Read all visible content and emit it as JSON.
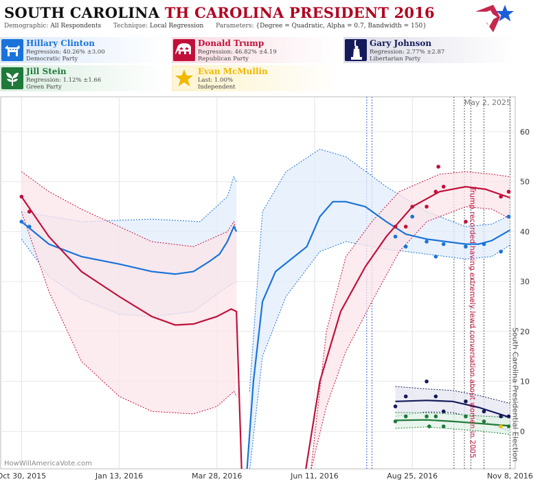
{
  "header": {
    "title_part1": "SOUTH CAROLINA",
    "title_part2": "TH CAROLINA PRESIDENT 2016",
    "demographic_label": "Demographic:",
    "demographic_value": "All Respondents",
    "technique_label": "Technique:",
    "technique_value": "Local Regression",
    "parameters_label": "Parameters:",
    "parameters_value": "{Degree = Quadratic, Alpha = 0.7, Bandwidth = 150}"
  },
  "candidates": [
    {
      "name": "Hillary Clinton",
      "line2": "Regression: 40.26% ±3.00",
      "line3": "Democratic Party",
      "color": "#1a73d9",
      "icon": "donkey-icon"
    },
    {
      "name": "Donald Trump",
      "line2": "Regression: 46.82% ±4.19",
      "line3": "Republican Party",
      "color": "#c0103a",
      "icon": "elephant-icon"
    },
    {
      "name": "Gary Johnson",
      "line2": "Regression: 2.77% ±2.87",
      "line3": "Libertarian Party",
      "color": "#141a5a",
      "icon": "statue-of-liberty-icon"
    },
    {
      "name": "Jill Stein",
      "line2": "Regression: 1.12% ±1.66",
      "line3": "Green Party",
      "color": "#1f7a3a",
      "icon": "leaf-icon"
    },
    {
      "name": "Evan McMullin",
      "line2": "Last: 1.00%",
      "line3": "Independent",
      "color": "#f2b800",
      "icon": "star-icon"
    }
  ],
  "chart_data": {
    "type": "line",
    "title": "SOUTH CAROLINA TH CAROLINA PRESIDENT 2016",
    "xlabel": "",
    "ylabel": "",
    "x_range": [
      "2015-10-14",
      "2016-11-12"
    ],
    "ylim": [
      -7.5,
      67
    ],
    "x_ticks": [
      "Oct 30, 2015",
      "Jan 13, 2016",
      "Mar 28, 2016",
      "Jun 11, 2016",
      "Aug 25, 2016",
      "Nov 8, 2016"
    ],
    "x_tick_dates": [
      "2015-10-30",
      "2016-01-13",
      "2016-03-28",
      "2016-06-11",
      "2016-08-25",
      "2016-11-08"
    ],
    "y_ticks": [
      0,
      10,
      20,
      30,
      40,
      50,
      60
    ],
    "grid": true,
    "date_stamp": "May 2, 2025",
    "watermark": "HowWillAmericaVote.com",
    "annotations": [
      {
        "text": "Trump recorded having extremely lewd conversation about women in 2005",
        "date": "2016-10-07"
      },
      {
        "text": "South Carolina Presidential Election",
        "date": "2016-11-08"
      }
    ],
    "event_lines_blue": [
      "2016-07-21",
      "2016-07-25"
    ],
    "event_lines_black": [
      "2016-09-26",
      "2016-10-04",
      "2016-10-09",
      "2016-10-19",
      "2016-11-08"
    ],
    "series": [
      {
        "name": "Hillary Clinton",
        "color": "#1a73d9",
        "trend": [
          [
            "2015-10-30",
            42
          ],
          [
            "2015-11-20",
            37.5
          ],
          [
            "2015-12-15",
            35
          ],
          [
            "2016-01-13",
            33.5
          ],
          [
            "2016-02-07",
            32
          ],
          [
            "2016-02-25",
            31.5
          ],
          [
            "2016-03-10",
            32
          ],
          [
            "2016-03-22",
            34
          ],
          [
            "2016-03-30",
            35.5
          ],
          [
            "2016-04-05",
            38
          ],
          [
            "2016-04-10",
            41
          ],
          [
            "2016-04-12",
            40
          ]
        ],
        "trend2": [
          [
            "2016-04-20",
            -8
          ],
          [
            "2016-04-25",
            10
          ],
          [
            "2016-05-02",
            26
          ],
          [
            "2016-05-12",
            32
          ],
          [
            "2016-06-05",
            37
          ],
          [
            "2016-06-15",
            43
          ],
          [
            "2016-06-25",
            46
          ],
          [
            "2016-07-05",
            46
          ],
          [
            "2016-07-20",
            45
          ],
          [
            "2016-08-05",
            42
          ],
          [
            "2016-08-20",
            39.5
          ],
          [
            "2016-09-05",
            38.5
          ],
          [
            "2016-09-20",
            38
          ],
          [
            "2016-10-05",
            37.5
          ],
          [
            "2016-10-15",
            37.5
          ],
          [
            "2016-10-25",
            38.2
          ],
          [
            "2016-11-08",
            40.3
          ]
        ],
        "upper": [
          [
            "2015-10-30",
            44
          ],
          [
            "2015-12-15",
            42
          ],
          [
            "2016-02-07",
            42.5
          ],
          [
            "2016-03-15",
            42
          ],
          [
            "2016-04-05",
            47
          ],
          [
            "2016-04-10",
            51
          ],
          [
            "2016-04-12",
            50
          ]
        ],
        "lower": [
          [
            "2015-10-30",
            38.5
          ],
          [
            "2015-11-20",
            31
          ],
          [
            "2015-12-15",
            26.5
          ],
          [
            "2016-01-13",
            23.5
          ],
          [
            "2016-02-07",
            23
          ],
          [
            "2016-03-10",
            24
          ],
          [
            "2016-04-05",
            29
          ],
          [
            "2016-04-12",
            30
          ]
        ],
        "upper2": [
          [
            "2016-04-22",
            8
          ],
          [
            "2016-05-02",
            44
          ],
          [
            "2016-05-20",
            52
          ],
          [
            "2016-06-15",
            56.5
          ],
          [
            "2016-07-05",
            55
          ],
          [
            "2016-08-05",
            49
          ],
          [
            "2016-09-05",
            44
          ],
          [
            "2016-10-05",
            41
          ],
          [
            "2016-10-25",
            41.5
          ],
          [
            "2016-11-08",
            43.3
          ]
        ],
        "lower2": [
          [
            "2016-04-22",
            -8
          ],
          [
            "2016-05-02",
            15
          ],
          [
            "2016-05-20",
            27
          ],
          [
            "2016-06-15",
            36
          ],
          [
            "2016-07-05",
            38
          ],
          [
            "2016-08-05",
            36.5
          ],
          [
            "2016-09-05",
            35.5
          ],
          [
            "2016-10-05",
            34.5
          ],
          [
            "2016-10-25",
            35
          ],
          [
            "2016-11-08",
            37.3
          ]
        ],
        "points": [
          [
            "2015-10-30",
            42
          ],
          [
            "2015-11-05",
            41
          ],
          [
            "2016-08-12",
            39
          ],
          [
            "2016-08-20",
            37
          ],
          [
            "2016-08-25",
            43
          ],
          [
            "2016-09-05",
            38
          ],
          [
            "2016-09-12",
            35
          ],
          [
            "2016-09-18",
            37.5
          ],
          [
            "2016-10-05",
            37
          ],
          [
            "2016-10-19",
            37.5
          ],
          [
            "2016-11-01",
            36
          ],
          [
            "2016-11-07",
            43
          ]
        ]
      },
      {
        "name": "Donald Trump",
        "color": "#c0103a",
        "trend": [
          [
            "2015-10-30",
            47
          ],
          [
            "2015-11-20",
            39
          ],
          [
            "2015-12-15",
            32
          ],
          [
            "2016-01-13",
            27
          ],
          [
            "2016-02-07",
            23
          ],
          [
            "2016-02-25",
            21.3
          ],
          [
            "2016-03-10",
            21.5
          ],
          [
            "2016-03-28",
            23
          ],
          [
            "2016-04-08",
            24.5
          ],
          [
            "2016-04-12",
            24
          ],
          [
            "2016-04-16",
            -8
          ]
        ],
        "trend2": [
          [
            "2016-06-04",
            -8
          ],
          [
            "2016-06-15",
            10
          ],
          [
            "2016-07-01",
            24
          ],
          [
            "2016-07-20",
            33
          ],
          [
            "2016-08-05",
            39
          ],
          [
            "2016-08-25",
            45
          ],
          [
            "2016-09-15",
            48
          ],
          [
            "2016-10-05",
            49
          ],
          [
            "2016-10-20",
            48.5
          ],
          [
            "2016-11-08",
            46.8
          ]
        ],
        "upper": [
          [
            "2015-10-30",
            52
          ],
          [
            "2015-11-20",
            48
          ],
          [
            "2015-12-15",
            44.5
          ],
          [
            "2016-01-13",
            41
          ],
          [
            "2016-02-07",
            38
          ],
          [
            "2016-03-10",
            37
          ],
          [
            "2016-04-05",
            40
          ],
          [
            "2016-04-10",
            42
          ],
          [
            "2016-04-12",
            40
          ]
        ],
        "lower": [
          [
            "2015-10-30",
            44
          ],
          [
            "2015-11-20",
            28
          ],
          [
            "2015-12-15",
            14
          ],
          [
            "2016-01-13",
            7
          ],
          [
            "2016-02-07",
            4
          ],
          [
            "2016-03-10",
            3.5
          ],
          [
            "2016-03-28",
            5
          ],
          [
            "2016-04-10",
            8
          ],
          [
            "2016-04-12",
            7
          ]
        ],
        "upper2": [
          [
            "2016-06-08",
            -8
          ],
          [
            "2016-06-20",
            20
          ],
          [
            "2016-07-05",
            35
          ],
          [
            "2016-07-25",
            42
          ],
          [
            "2016-08-15",
            48
          ],
          [
            "2016-09-15",
            51.5
          ],
          [
            "2016-10-05",
            52
          ],
          [
            "2016-10-25",
            51.5
          ],
          [
            "2016-11-08",
            51
          ]
        ],
        "lower2": [
          [
            "2016-06-08",
            -8
          ],
          [
            "2016-06-20",
            5
          ],
          [
            "2016-07-05",
            16
          ],
          [
            "2016-07-25",
            26
          ],
          [
            "2016-08-15",
            36
          ],
          [
            "2016-09-05",
            42
          ],
          [
            "2016-10-05",
            45
          ],
          [
            "2016-10-25",
            44.5
          ],
          [
            "2016-11-08",
            42.6
          ]
        ],
        "points": [
          [
            "2015-10-30",
            47
          ],
          [
            "2015-11-05",
            44
          ],
          [
            "2016-08-12",
            41
          ],
          [
            "2016-08-20",
            41
          ],
          [
            "2016-08-25",
            45
          ],
          [
            "2016-09-05",
            45
          ],
          [
            "2016-09-12",
            48
          ],
          [
            "2016-09-14",
            53
          ],
          [
            "2016-09-18",
            49
          ],
          [
            "2016-10-05",
            42
          ],
          [
            "2016-11-01",
            47
          ],
          [
            "2016-11-07",
            48
          ]
        ]
      },
      {
        "name": "Gary Johnson",
        "color": "#141a5a",
        "trend": [
          [
            "2016-08-12",
            6
          ],
          [
            "2016-09-05",
            6.2
          ],
          [
            "2016-09-25",
            6
          ],
          [
            "2016-10-15",
            4.8
          ],
          [
            "2016-11-08",
            2.8
          ]
        ],
        "upper": [
          [
            "2016-08-12",
            9
          ],
          [
            "2016-09-05",
            8.5
          ],
          [
            "2016-09-25",
            8.2
          ],
          [
            "2016-10-15",
            7.2
          ],
          [
            "2016-11-08",
            5.6
          ]
        ],
        "lower": [
          [
            "2016-08-12",
            3
          ],
          [
            "2016-09-05",
            3.9
          ],
          [
            "2016-09-25",
            3.8
          ],
          [
            "2016-10-15",
            2.4
          ],
          [
            "2016-11-08",
            0
          ]
        ],
        "points": [
          [
            "2016-08-12",
            5
          ],
          [
            "2016-08-20",
            7
          ],
          [
            "2016-09-05",
            10
          ],
          [
            "2016-09-12",
            7
          ],
          [
            "2016-09-18",
            4
          ],
          [
            "2016-10-05",
            6
          ],
          [
            "2016-10-19",
            4
          ],
          [
            "2016-11-01",
            3
          ],
          [
            "2016-11-07",
            3
          ]
        ]
      },
      {
        "name": "Jill Stein",
        "color": "#1f7a3a",
        "trend": [
          [
            "2016-08-12",
            2.2
          ],
          [
            "2016-09-05",
            2.3
          ],
          [
            "2016-09-25",
            2
          ],
          [
            "2016-10-15",
            1.6
          ],
          [
            "2016-11-08",
            1.1
          ]
        ],
        "upper": [
          [
            "2016-08-12",
            3.8
          ],
          [
            "2016-09-05",
            3.7
          ],
          [
            "2016-09-25",
            3.5
          ],
          [
            "2016-10-15",
            3.1
          ],
          [
            "2016-11-08",
            2.8
          ]
        ],
        "lower": [
          [
            "2016-08-12",
            0.6
          ],
          [
            "2016-09-05",
            0.9
          ],
          [
            "2016-09-25",
            0.5
          ],
          [
            "2016-10-15",
            0.1
          ],
          [
            "2016-11-08",
            -0.6
          ]
        ],
        "points": [
          [
            "2016-08-12",
            2
          ],
          [
            "2016-08-20",
            3
          ],
          [
            "2016-09-05",
            3
          ],
          [
            "2016-09-07",
            1
          ],
          [
            "2016-09-12",
            3
          ],
          [
            "2016-09-18",
            1
          ],
          [
            "2016-10-05",
            3
          ],
          [
            "2016-10-19",
            2
          ],
          [
            "2016-11-07",
            1
          ]
        ]
      },
      {
        "name": "Evan McMullin",
        "color": "#f2b800",
        "points": [
          [
            "2016-11-01",
            1
          ]
        ]
      }
    ]
  }
}
